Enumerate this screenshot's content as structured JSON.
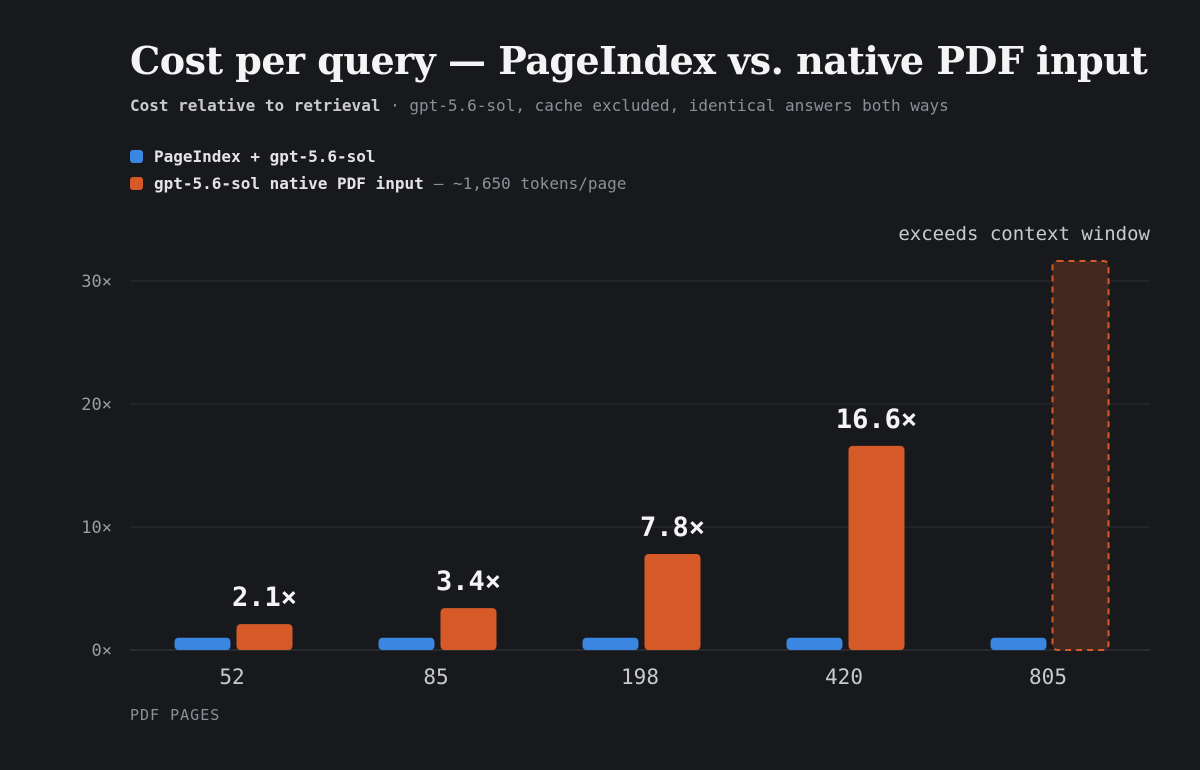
{
  "colors": {
    "retrieval": "#3b86e0",
    "native": "#d65a28",
    "exceeded_fill": "#432820",
    "grid": "#2c2d33",
    "axis": "#3a3b41",
    "tick_text": "#9a9ca3",
    "value_label": "#f4f4f5",
    "background": "#18191d"
  },
  "chart_data": {
    "type": "bar",
    "title": "Cost per query — PageIndex vs. native PDF input",
    "subtitle_strong": "Cost relative to retrieval",
    "subtitle_rest": "· gpt-5.6-sol, cache excluded, identical answers both ways",
    "xlabel": "PDF PAGES",
    "ylabel": "",
    "categories": [
      "52",
      "85",
      "198",
      "420",
      "805"
    ],
    "ylim": [
      0,
      30
    ],
    "yticks": [
      0,
      10,
      20,
      30
    ],
    "ytick_labels": [
      "0×",
      "10×",
      "20×",
      "30×"
    ],
    "grid": true,
    "legend_placement": "top-left",
    "series": [
      {
        "name": "PageIndex + gpt-5.6-sol",
        "note": "",
        "values": [
          1,
          1,
          1,
          1,
          1
        ],
        "labels": [
          "",
          "",
          "",
          "",
          ""
        ]
      },
      {
        "name": "gpt-5.6-sol native PDF input",
        "note": "— ~1,650 tokens/page",
        "values": [
          2.1,
          3.4,
          7.8,
          16.6,
          null
        ],
        "labels": [
          "2.1×",
          "3.4×",
          "7.8×",
          "16.6×",
          ""
        ]
      }
    ],
    "annotations": [
      {
        "category": "805",
        "series": "gpt-5.6-sol native PDF input",
        "text": "exceeds context window",
        "style": "dashed-bar-beyond-axis"
      }
    ]
  }
}
